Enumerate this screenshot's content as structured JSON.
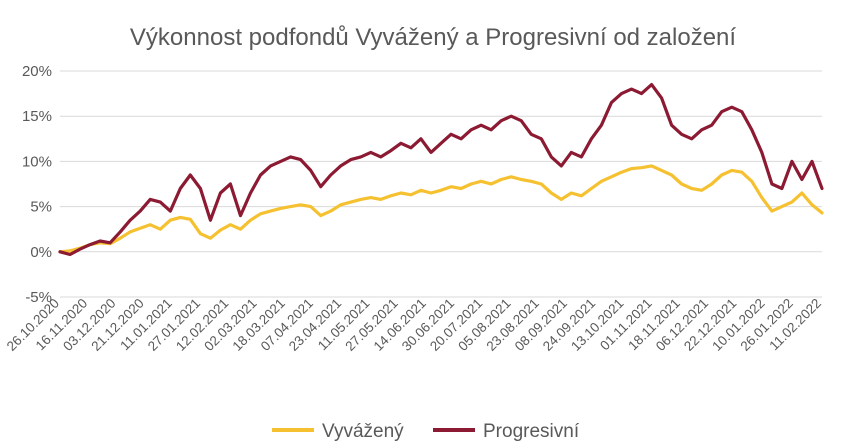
{
  "chart_data": {
    "type": "line",
    "title": "Výkonnost podfondů Vyvážený a Progresivní od založení",
    "xlabel": "",
    "ylabel": "",
    "ylim": [
      -5,
      20
    ],
    "y_tick_values": [
      -5,
      0,
      5,
      10,
      15,
      20
    ],
    "y_tick_labels": [
      "-5%",
      "0%",
      "5%",
      "10%",
      "15%",
      "20%"
    ],
    "x_tick_labels": [
      "26.10.2020",
      "16.11.2020",
      "03.12.2020",
      "21.12.2020",
      "11.01.2021",
      "27.01.2021",
      "12.02.2021",
      "02.03.2021",
      "18.03.2021",
      "07.04.2021",
      "23.04.2021",
      "11.05.2021",
      "27.05.2021",
      "14.06.2021",
      "30.06.2021",
      "20.07.2021",
      "05.08.2021",
      "23.08.2021",
      "08.09.2021",
      "24.09.2021",
      "13.10.2021",
      "01.11.2021",
      "18.11.2021",
      "06.12.2021",
      "22.12.2021",
      "10.01.2022",
      "26.01.2022",
      "11.02.2022"
    ],
    "grid": true,
    "legend_position": "bottom",
    "series": [
      {
        "name": "Vyvážený",
        "color": "#f5c131",
        "values": [
          0.0,
          0.1,
          0.4,
          0.8,
          1.0,
          0.9,
          1.5,
          2.2,
          2.6,
          3.0,
          2.5,
          3.5,
          3.8,
          3.6,
          2.0,
          1.5,
          2.4,
          3.0,
          2.5,
          3.5,
          4.2,
          4.5,
          4.8,
          5.0,
          5.2,
          5.0,
          4.0,
          4.5,
          5.2,
          5.5,
          5.8,
          6.0,
          5.8,
          6.2,
          6.5,
          6.3,
          6.8,
          6.5,
          6.8,
          7.2,
          7.0,
          7.5,
          7.8,
          7.5,
          8.0,
          8.3,
          8.0,
          7.8,
          7.5,
          6.5,
          5.8,
          6.5,
          6.2,
          7.0,
          7.8,
          8.3,
          8.8,
          9.2,
          9.3,
          9.5,
          9.0,
          8.5,
          7.5,
          7.0,
          6.8,
          7.5,
          8.5,
          9.0,
          8.8,
          7.8,
          6.0,
          4.5,
          5.0,
          5.5,
          6.5,
          5.2,
          4.3
        ]
      },
      {
        "name": "Progresivní",
        "color": "#8b1a32",
        "values": [
          0.0,
          -0.3,
          0.3,
          0.8,
          1.2,
          1.0,
          2.2,
          3.5,
          4.5,
          5.8,
          5.5,
          4.5,
          7.0,
          8.5,
          7.0,
          3.5,
          6.5,
          7.5,
          4.0,
          6.5,
          8.5,
          9.5,
          10.0,
          10.5,
          10.2,
          9.0,
          7.2,
          8.5,
          9.5,
          10.2,
          10.5,
          11.0,
          10.5,
          11.2,
          12.0,
          11.5,
          12.5,
          11.0,
          12.0,
          13.0,
          12.5,
          13.5,
          14.0,
          13.5,
          14.5,
          15.0,
          14.5,
          13.0,
          12.5,
          10.5,
          9.5,
          11.0,
          10.5,
          12.5,
          14.0,
          16.5,
          17.5,
          18.0,
          17.5,
          18.5,
          17.0,
          14.0,
          13.0,
          12.5,
          13.5,
          14.0,
          15.5,
          16.0,
          15.5,
          13.5,
          11.0,
          7.5,
          7.0,
          10.0,
          8.0,
          10.0,
          7.0
        ]
      }
    ]
  }
}
